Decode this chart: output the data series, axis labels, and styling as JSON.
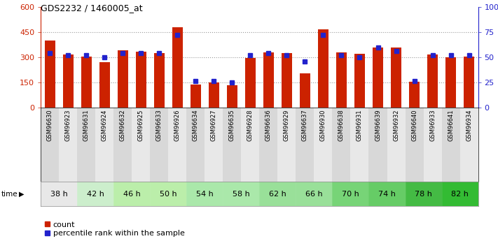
{
  "title": "GDS2232 / 1460005_at",
  "samples": [
    "GSM96630",
    "GSM96923",
    "GSM96631",
    "GSM96924",
    "GSM96632",
    "GSM96925",
    "GSM96633",
    "GSM96926",
    "GSM96634",
    "GSM96927",
    "GSM96635",
    "GSM96928",
    "GSM96636",
    "GSM96929",
    "GSM96637",
    "GSM96930",
    "GSM96638",
    "GSM96931",
    "GSM96639",
    "GSM96932",
    "GSM96640",
    "GSM96933",
    "GSM96641",
    "GSM96934"
  ],
  "counts": [
    400,
    315,
    305,
    270,
    340,
    335,
    325,
    480,
    135,
    148,
    133,
    295,
    328,
    325,
    205,
    468,
    328,
    322,
    360,
    358,
    155,
    318,
    298,
    302
  ],
  "percentiles": [
    54,
    52,
    52,
    50,
    54,
    54,
    54,
    72,
    26,
    26,
    25,
    52,
    54,
    52,
    46,
    72,
    52,
    50,
    60,
    56,
    26,
    52,
    52,
    52
  ],
  "bar_color": "#cc2200",
  "percentile_color": "#2222cc",
  "ylim_left": [
    0,
    600
  ],
  "ylim_right": [
    0,
    100
  ],
  "yticks_left": [
    0,
    150,
    300,
    450,
    600
  ],
  "yticks_right": [
    0,
    25,
    50,
    75,
    100
  ],
  "ytick_labels_right": [
    "0",
    "25",
    "50",
    "75",
    "100%"
  ],
  "grid_dotted_at": [
    150,
    300,
    450
  ],
  "time_groups": [
    {
      "label": "38 h",
      "start": 0,
      "end": 2,
      "color": "#e8e8e8"
    },
    {
      "label": "42 h",
      "start": 2,
      "end": 4,
      "color": "#cceecc"
    },
    {
      "label": "46 h",
      "start": 4,
      "end": 6,
      "color": "#bbeeaa"
    },
    {
      "label": "50 h",
      "start": 6,
      "end": 8,
      "color": "#bbeeaa"
    },
    {
      "label": "54 h",
      "start": 8,
      "end": 10,
      "color": "#aae8aa"
    },
    {
      "label": "58 h",
      "start": 10,
      "end": 12,
      "color": "#aae8aa"
    },
    {
      "label": "62 h",
      "start": 12,
      "end": 14,
      "color": "#99e099"
    },
    {
      "label": "66 h",
      "start": 14,
      "end": 16,
      "color": "#99e099"
    },
    {
      "label": "70 h",
      "start": 16,
      "end": 18,
      "color": "#77d477"
    },
    {
      "label": "74 h",
      "start": 18,
      "end": 20,
      "color": "#66cc66"
    },
    {
      "label": "78 h",
      "start": 20,
      "end": 22,
      "color": "#44bb44"
    },
    {
      "label": "82 h",
      "start": 22,
      "end": 24,
      "color": "#33bb33"
    }
  ],
  "sample_bg_odd": "#d8d8d8",
  "sample_bg_even": "#e8e8e8",
  "legend_count_label": "count",
  "legend_percentile_label": "percentile rank within the sample"
}
